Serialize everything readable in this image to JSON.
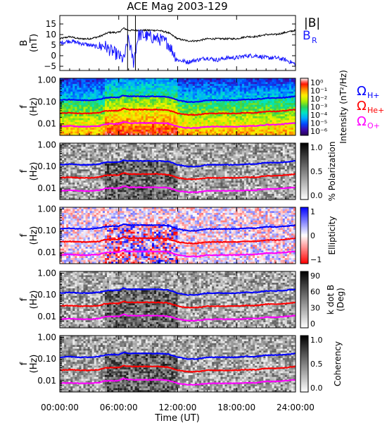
{
  "title": "ACE Mag 2003-129",
  "colors": {
    "btotal": "#000000",
    "br": "#1a1aff",
    "h_plus": "#0000ff",
    "he_plus": "#ff0000",
    "o_plus": "#ff00ff"
  },
  "legend": {
    "btotal_label": "|B|",
    "br_label": "B",
    "br_sub": "R",
    "h_label": "Ω",
    "h_sub": "H+",
    "he_label": "Ω",
    "he_sub": "He+",
    "o_label": "Ω",
    "o_sub": "O+"
  },
  "x_axis": {
    "title": "Time (UT)",
    "range_hours": [
      0,
      24
    ],
    "ticks": [
      {
        "value": 0,
        "label": "00:00:00"
      },
      {
        "value": 6,
        "label": "06:00:00"
      },
      {
        "value": 12,
        "label": "12:00:00"
      },
      {
        "value": 18,
        "label": "18:00:00"
      },
      {
        "value": 24,
        "label": "24:00:00"
      }
    ]
  },
  "freq_axis": {
    "label1": "f",
    "label2": "(Hz)",
    "range": [
      0.003,
      1.2
    ],
    "ticks": [
      {
        "value": 1.0,
        "label": "1.00"
      },
      {
        "value": 0.1,
        "label": "0.10"
      },
      {
        "value": 0.01,
        "label": "0.01"
      }
    ]
  },
  "chart_data": [
    {
      "type": "line",
      "panel": "field",
      "ylabel1": "B",
      "ylabel2": "(nT)",
      "ylim": [
        -7,
        19
      ],
      "yticks": [
        15,
        10,
        5,
        0,
        -5
      ],
      "series": [
        {
          "name": "|B|",
          "x": [
            0,
            1,
            2,
            3,
            4,
            4.5,
            5,
            6,
            6.5,
            7,
            8,
            9,
            10,
            11,
            12,
            13,
            14,
            15,
            16,
            17,
            18,
            19,
            20,
            21,
            22,
            23,
            24
          ],
          "y": [
            8,
            9,
            8,
            8,
            9,
            10,
            11,
            11,
            13,
            12,
            12,
            12,
            12,
            11,
            8,
            7,
            7,
            8,
            8,
            8,
            8,
            9,
            9,
            10,
            10,
            11,
            12
          ]
        },
        {
          "name": "B_R",
          "x": [
            0,
            1,
            2,
            3,
            4,
            4.5,
            5,
            6,
            6.5,
            7,
            7.5,
            8,
            9,
            10,
            11,
            12,
            13,
            14,
            15,
            16,
            17,
            18,
            19,
            20,
            21,
            22,
            23,
            24
          ],
          "y": [
            6,
            7,
            6,
            5,
            4,
            5,
            3,
            0,
            -2,
            8,
            -3,
            10,
            9,
            8,
            6,
            -2,
            -3,
            -2,
            -1,
            -2,
            -1,
            -1,
            0,
            0,
            -1,
            -1,
            -2,
            -4
          ]
        }
      ]
    },
    {
      "type": "heatmap",
      "panel": "intensity",
      "colorbar_label": "Intensity (nT²/Hz)",
      "colorbar_ticks": [
        "10⁰",
        "10⁻¹",
        "10⁻²",
        "10⁻³",
        "10⁻⁴",
        "10⁻⁵",
        "10⁻⁶"
      ],
      "colormap": [
        "#2a0052",
        "#3a0bb0",
        "#0048ff",
        "#00aaff",
        "#00e8c0",
        "#30d050",
        "#b0f000",
        "#fff000",
        "#ff9000",
        "#ff1000",
        "#ffffff"
      ],
      "series_names": [
        "ΩH+",
        "ΩHe+",
        "ΩO+"
      ]
    },
    {
      "type": "heatmap",
      "panel": "polarization",
      "colorbar_label": "% Polarization",
      "colorbar_ticks": [
        "1.0",
        "0.5",
        "0.0"
      ],
      "colormap": [
        "#ffffff",
        "#000000"
      ]
    },
    {
      "type": "heatmap",
      "panel": "ellipticity",
      "colorbar_label": "Ellipticity",
      "colorbar_ticks": [
        "1",
        "0",
        "−1"
      ],
      "colormap": [
        "#ff0000",
        "#ffffff",
        "#0000ff"
      ]
    },
    {
      "type": "heatmap",
      "panel": "kdotb",
      "colorbar_label": "k dot B",
      "colorbar_label2": "(Deg)",
      "colorbar_ticks": [
        "90",
        "60",
        "30",
        "0"
      ],
      "colormap": [
        "#ffffff",
        "#000000"
      ]
    },
    {
      "type": "heatmap",
      "panel": "coherency",
      "colorbar_label": "Coherency",
      "colorbar_ticks": [
        "1.0",
        "0.5",
        "0.0"
      ],
      "colormap": [
        "#ffffff",
        "#000000"
      ]
    }
  ],
  "gyro_freqs": {
    "x": [
      0,
      1,
      2,
      3,
      4,
      4.5,
      5,
      6,
      6.5,
      7,
      8,
      9,
      10,
      11,
      12,
      13,
      14,
      15,
      16,
      17,
      18,
      19,
      20,
      21,
      22,
      23,
      24
    ],
    "h_plus": [
      0.12,
      0.13,
      0.12,
      0.12,
      0.13,
      0.15,
      0.16,
      0.16,
      0.2,
      0.18,
      0.18,
      0.18,
      0.18,
      0.17,
      0.12,
      0.1,
      0.1,
      0.12,
      0.12,
      0.12,
      0.12,
      0.13,
      0.13,
      0.15,
      0.15,
      0.16,
      0.18
    ],
    "he_plus": [
      0.03,
      0.032,
      0.03,
      0.03,
      0.032,
      0.038,
      0.04,
      0.04,
      0.05,
      0.045,
      0.045,
      0.045,
      0.045,
      0.042,
      0.03,
      0.026,
      0.026,
      0.03,
      0.03,
      0.03,
      0.03,
      0.032,
      0.032,
      0.037,
      0.037,
      0.04,
      0.045
    ],
    "o_plus": [
      0.0075,
      0.008,
      0.0075,
      0.0075,
      0.008,
      0.0095,
      0.01,
      0.01,
      0.0125,
      0.011,
      0.011,
      0.011,
      0.011,
      0.0105,
      0.0075,
      0.0065,
      0.0065,
      0.0075,
      0.0075,
      0.0075,
      0.0075,
      0.008,
      0.008,
      0.0092,
      0.0092,
      0.01,
      0.011
    ]
  }
}
